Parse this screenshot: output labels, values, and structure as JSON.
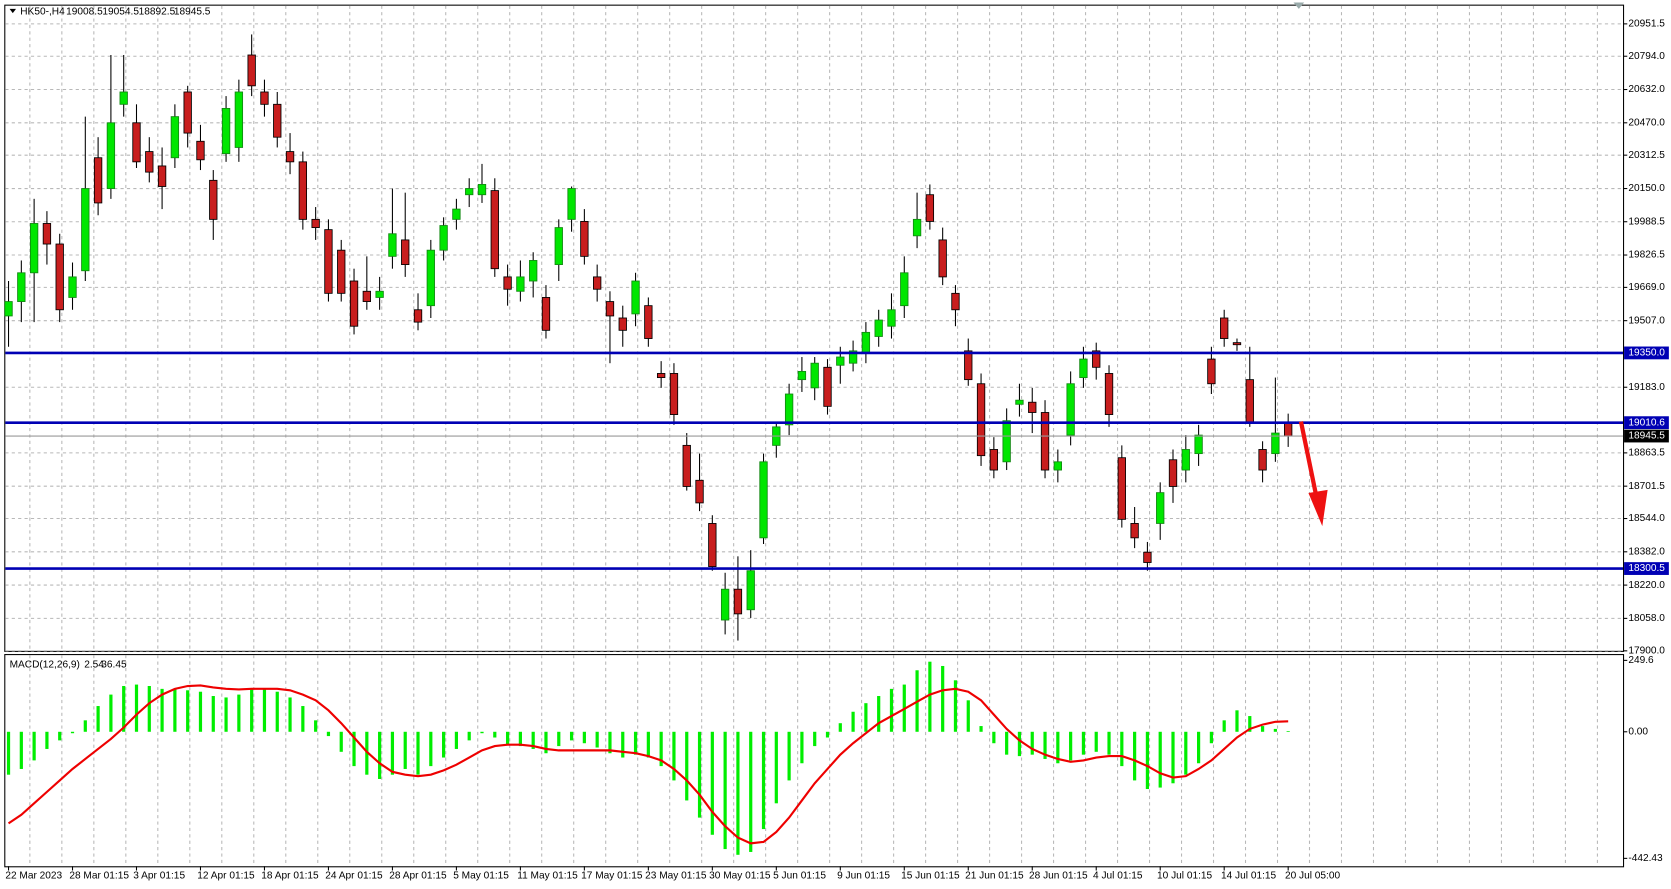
{
  "chart_data": {
    "type": "candlestick",
    "symbol": "HK50-,H4",
    "up_color": "#00e600",
    "down_color": "#c81e1e",
    "level_color": "#0000b4",
    "grid": true,
    "categories": [
      "22 Mar 2023",
      null,
      null,
      null,
      null,
      "28 Mar 01:15",
      null,
      null,
      null,
      null,
      "3 Apr 01:15",
      null,
      null,
      null,
      null,
      "12 Apr 01:15",
      null,
      null,
      null,
      null,
      "18 Apr 01:15",
      null,
      null,
      null,
      null,
      "24 Apr 01:15",
      null,
      null,
      null,
      null,
      "28 Apr 01:15",
      null,
      null,
      null,
      null,
      "5 May 01:15",
      null,
      null,
      null,
      null,
      "11 May 01:15",
      null,
      null,
      null,
      null,
      "17 May 01:15",
      null,
      null,
      null,
      null,
      "23 May 01:15",
      null,
      null,
      null,
      null,
      "30 May 01:15",
      null,
      null,
      null,
      null,
      "5 Jun 01:15",
      null,
      null,
      null,
      null,
      "9 Jun 01:15",
      null,
      null,
      null,
      null,
      "15 Jun 01:15",
      null,
      null,
      null,
      null,
      "21 Jun 01:15",
      null,
      null,
      null,
      null,
      "28 Jun 01:15",
      null,
      null,
      null,
      null,
      "4 Jul 01:15",
      null,
      null,
      null,
      null,
      "10 Jul 01:15",
      null,
      null,
      null,
      null,
      "14 Jul 01:15",
      null,
      null,
      null,
      null,
      "20 Jul 05:00"
    ],
    "candles": [
      [
        19530,
        19700,
        19380,
        19600
      ],
      [
        19600,
        19800,
        19500,
        19740
      ],
      [
        19740,
        20100,
        19500,
        19980
      ],
      [
        19980,
        20040,
        19780,
        19880
      ],
      [
        19880,
        19930,
        19500,
        19560
      ],
      [
        19620,
        19790,
        19560,
        19720
      ],
      [
        19750,
        20500,
        19700,
        20150
      ],
      [
        20300,
        20400,
        20020,
        20080
      ],
      [
        20150,
        20800,
        20100,
        20470
      ],
      [
        20560,
        20800,
        20500,
        20620
      ],
      [
        20470,
        20560,
        20250,
        20280
      ],
      [
        20330,
        20400,
        20180,
        20230
      ],
      [
        20260,
        20350,
        20050,
        20160
      ],
      [
        20300,
        20560,
        20250,
        20500
      ],
      [
        20620,
        20650,
        20350,
        20420
      ],
      [
        20380,
        20460,
        20240,
        20290
      ],
      [
        20190,
        20240,
        19900,
        20000
      ],
      [
        20320,
        20600,
        20280,
        20540
      ],
      [
        20350,
        20680,
        20280,
        20620
      ],
      [
        20800,
        20900,
        20600,
        20650
      ],
      [
        20620,
        20680,
        20500,
        20560
      ],
      [
        20560,
        20620,
        20350,
        20400
      ],
      [
        20330,
        20420,
        20220,
        20280
      ],
      [
        20280,
        20330,
        19950,
        20000
      ],
      [
        20000,
        20060,
        19900,
        19960
      ],
      [
        19950,
        20000,
        19600,
        19640
      ],
      [
        19850,
        19900,
        19600,
        19640
      ],
      [
        19700,
        19760,
        19440,
        19480
      ],
      [
        19650,
        19820,
        19560,
        19600
      ],
      [
        19620,
        19720,
        19560,
        19650
      ],
      [
        19820,
        20150,
        19760,
        19930
      ],
      [
        19900,
        20130,
        19720,
        19780
      ],
      [
        19560,
        19640,
        19460,
        19500
      ],
      [
        19580,
        19900,
        19520,
        19850
      ],
      [
        19850,
        20010,
        19800,
        19970
      ],
      [
        20000,
        20100,
        19950,
        20050
      ],
      [
        20120,
        20200,
        20060,
        20150
      ],
      [
        20120,
        20270,
        20080,
        20170
      ],
      [
        20140,
        20200,
        19720,
        19760
      ],
      [
        19720,
        19780,
        19580,
        19660
      ],
      [
        19650,
        19800,
        19600,
        19720
      ],
      [
        19700,
        19840,
        19620,
        19800
      ],
      [
        19620,
        19680,
        19420,
        19460
      ],
      [
        19780,
        20000,
        19700,
        19960
      ],
      [
        20000,
        20160,
        19940,
        20150
      ],
      [
        19990,
        20050,
        19780,
        19820
      ],
      [
        19720,
        19780,
        19600,
        19660
      ],
      [
        19600,
        19650,
        19300,
        19530
      ],
      [
        19520,
        19580,
        19380,
        19460
      ],
      [
        19540,
        19740,
        19480,
        19700
      ],
      [
        19580,
        19620,
        19380,
        19420
      ],
      [
        19250,
        19310,
        19180,
        19230
      ],
      [
        19250,
        19300,
        19000,
        19050
      ],
      [
        18900,
        18960,
        18680,
        18700
      ],
      [
        18730,
        18860,
        18580,
        18620
      ],
      [
        18520,
        18560,
        18290,
        18310
      ],
      [
        18050,
        18280,
        17980,
        18200
      ],
      [
        18200,
        18360,
        17950,
        18080
      ],
      [
        18100,
        18390,
        18060,
        18290
      ],
      [
        18450,
        18860,
        18420,
        18820
      ],
      [
        18900,
        19010,
        18840,
        18990
      ],
      [
        19000,
        19200,
        18950,
        19150
      ],
      [
        19220,
        19330,
        19160,
        19260
      ],
      [
        19180,
        19330,
        19120,
        19300
      ],
      [
        19280,
        19320,
        19050,
        19090
      ],
      [
        19290,
        19380,
        19200,
        19330
      ],
      [
        19300,
        19410,
        19260,
        19360
      ],
      [
        19350,
        19500,
        19300,
        19450
      ],
      [
        19430,
        19560,
        19380,
        19510
      ],
      [
        19480,
        19640,
        19420,
        19560
      ],
      [
        19580,
        19820,
        19520,
        19740
      ],
      [
        19920,
        20130,
        19860,
        20000
      ],
      [
        20120,
        20170,
        19950,
        19990
      ],
      [
        19900,
        19960,
        19680,
        19720
      ],
      [
        19640,
        19680,
        19480,
        19560
      ],
      [
        19360,
        19420,
        19190,
        19220
      ],
      [
        19200,
        19250,
        18800,
        18850
      ],
      [
        18880,
        18940,
        18740,
        18780
      ],
      [
        18820,
        19080,
        18780,
        19020
      ],
      [
        19100,
        19200,
        19040,
        19120
      ],
      [
        19110,
        19180,
        18960,
        19060
      ],
      [
        19060,
        19120,
        18740,
        18780
      ],
      [
        18780,
        18880,
        18720,
        18820
      ],
      [
        18950,
        19260,
        18900,
        19200
      ],
      [
        19230,
        19380,
        19180,
        19320
      ],
      [
        19360,
        19400,
        19220,
        19280
      ],
      [
        19250,
        19290,
        18990,
        19050
      ],
      [
        18840,
        18900,
        18500,
        18540
      ],
      [
        18520,
        18600,
        18400,
        18450
      ],
      [
        18380,
        18430,
        18290,
        18330
      ],
      [
        18520,
        18720,
        18440,
        18670
      ],
      [
        18830,
        18880,
        18620,
        18700
      ],
      [
        18780,
        18950,
        18720,
        18880
      ],
      [
        18860,
        19000,
        18800,
        18950
      ],
      [
        19320,
        19380,
        19150,
        19200
      ],
      [
        19520,
        19560,
        19380,
        19420
      ],
      [
        19400,
        19420,
        19360,
        19390
      ],
      [
        19220,
        19380,
        18990,
        19010
      ],
      [
        18880,
        18920,
        18720,
        18780
      ],
      [
        18860,
        19230,
        18820,
        18960
      ],
      [
        19008.5,
        19054.5,
        18892.5,
        18945.5
      ]
    ],
    "ylim": [
      17900,
      21040
    ],
    "yticks": [
      20951.5,
      {
        "value": 20794,
        "label": "20794.0"
      },
      {
        "value": 20632,
        "label": "20632.0"
      },
      {
        "value": 20470,
        "label": "20470.0"
      },
      20312.5,
      {
        "value": 20150,
        "label": "20150.0"
      },
      19988.5,
      19826.5,
      {
        "value": 19669,
        "label": "19669.0"
      },
      {
        "value": 19507,
        "label": "19507.0"
      },
      {
        "value": 19183,
        "label": "19183.0"
      },
      18863.5,
      18701.5,
      {
        "value": 18544,
        "label": "18544.0"
      },
      {
        "value": 18382,
        "label": "18382.0"
      },
      {
        "value": 18220,
        "label": "18220.0"
      },
      {
        "value": 18058,
        "label": "18058.0"
      },
      {
        "value": 17900,
        "label": "17900.0"
      }
    ],
    "levels": [
      {
        "value": 19350,
        "label": "19350.0"
      },
      19010.6,
      18300.5
    ],
    "macd": {
      "title": "MACD(12,26,9)",
      "color": "#00ee00",
      "signal_color": "#ee0000",
      "ylim": [
        -470,
        268
      ],
      "yticks": [
        249.6,
        {
          "value": 0,
          "label": "0.00"
        },
        -442.43
      ],
      "values": [
        -150,
        -130,
        -100,
        -60,
        -30,
        -5,
        40,
        90,
        130,
        160,
        165,
        160,
        150,
        150,
        145,
        140,
        125,
        120,
        130,
        150,
        150,
        140,
        120,
        90,
        40,
        -15,
        -70,
        -120,
        -150,
        -165,
        -150,
        -130,
        -150,
        -120,
        -90,
        -60,
        -30,
        -5,
        -20,
        -45,
        -50,
        -60,
        -75,
        -50,
        -30,
        -40,
        -55,
        -75,
        -90,
        -80,
        -90,
        -120,
        -170,
        -240,
        -300,
        -360,
        -410,
        -430,
        -420,
        -340,
        -250,
        -170,
        -110,
        -50,
        -20,
        30,
        70,
        100,
        125,
        150,
        165,
        215,
        245,
        230,
        180,
        110,
        20,
        -40,
        -80,
        -85,
        -80,
        -95,
        -110,
        -100,
        -80,
        -70,
        -80,
        -120,
        -170,
        -200,
        -195,
        -180,
        -150,
        -110,
        -40,
        40,
        75,
        55,
        20,
        10,
        2.54
      ],
      "signal": [
        -320,
        -290,
        -250,
        -210,
        -170,
        -130,
        -95,
        -60,
        -25,
        15,
        60,
        100,
        130,
        150,
        160,
        162,
        155,
        150,
        148,
        150,
        150,
        150,
        145,
        130,
        110,
        75,
        30,
        -20,
        -70,
        -110,
        -140,
        -150,
        -155,
        -150,
        -135,
        -115,
        -90,
        -65,
        -50,
        -45,
        -45,
        -50,
        -60,
        -65,
        -65,
        -65,
        -65,
        -65,
        -70,
        -75,
        -85,
        -100,
        -130,
        -170,
        -220,
        -280,
        -330,
        -370,
        -390,
        -385,
        -350,
        -300,
        -240,
        -180,
        -130,
        -80,
        -40,
        -5,
        30,
        55,
        80,
        105,
        130,
        145,
        150,
        140,
        110,
        60,
        10,
        -30,
        -60,
        -80,
        -95,
        -105,
        -100,
        -90,
        -85,
        -85,
        -100,
        -120,
        -145,
        -160,
        -155,
        -130,
        -100,
        -60,
        -20,
        10,
        25,
        35,
        36.45
      ]
    }
  }
}
